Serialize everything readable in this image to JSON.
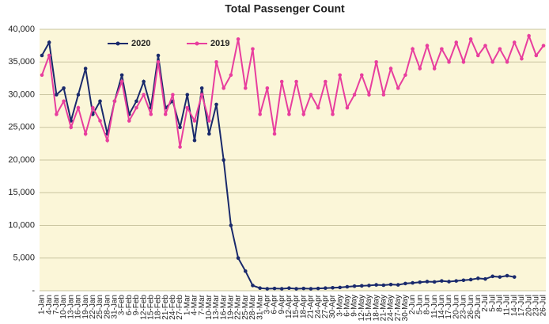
{
  "chart_data": {
    "type": "line",
    "title": "Total Passenger Count",
    "categories": [
      "1-Jan",
      "4-Jan",
      "7-Jan",
      "10-Jan",
      "13-Jan",
      "16-Jan",
      "19-Jan",
      "22-Jan",
      "25-Jan",
      "28-Jan",
      "31-Jan",
      "3-Feb",
      "6-Feb",
      "9-Feb",
      "12-Feb",
      "15-Feb",
      "18-Feb",
      "21-Feb",
      "24-Feb",
      "27-Feb",
      "1-Mar",
      "4-Mar",
      "7-Mar",
      "10-Mar",
      "13-Mar",
      "16-Mar",
      "19-Mar",
      "22-Mar",
      "25-Mar",
      "28-Mar",
      "31-Mar",
      "3-Apr",
      "6-Apr",
      "9-Apr",
      "12-Apr",
      "15-Apr",
      "18-Apr",
      "21-Apr",
      "24-Apr",
      "27-Apr",
      "30-Apr",
      "3-May",
      "6-May",
      "9-May",
      "12-May",
      "15-May",
      "18-May",
      "21-May",
      "24-May",
      "27-May",
      "30-May",
      "2-Jun",
      "5-Jun",
      "8-Jun",
      "11-Jun",
      "14-Jun",
      "17-Jun",
      "20-Jun",
      "23-Jun",
      "26-Jun",
      "29-Jun",
      "2-Jul",
      "5-Jul",
      "8-Jul",
      "11-Jul",
      "14-Jul",
      "17-Jul",
      "20-Jul",
      "23-Jul",
      "26-Jul"
    ],
    "series": [
      {
        "name": "2020",
        "color": "#1a2a6c",
        "values": [
          36000,
          38000,
          30000,
          31000,
          26000,
          30000,
          34000,
          27000,
          29000,
          24000,
          29000,
          33000,
          27000,
          29000,
          32000,
          28000,
          36000,
          28000,
          29000,
          25000,
          30000,
          23000,
          31000,
          24000,
          28500,
          20000,
          10000,
          5000,
          3000,
          800,
          400,
          300,
          350,
          300,
          400,
          300,
          350,
          300,
          350,
          400,
          450,
          500,
          600,
          700,
          750,
          800,
          900,
          850,
          950,
          900,
          1100,
          1200,
          1300,
          1400,
          1350,
          1500,
          1400,
          1500,
          1600,
          1700,
          1900,
          1800,
          2200,
          2100,
          2300,
          2100,
          null,
          null,
          null,
          null
        ]
      },
      {
        "name": "2019",
        "color": "#e83e9e",
        "values": [
          33000,
          36000,
          27000,
          29000,
          25000,
          28000,
          24000,
          28000,
          26000,
          23000,
          29000,
          32000,
          26000,
          28000,
          30000,
          27000,
          35000,
          27000,
          30000,
          22000,
          28000,
          26000,
          30000,
          26000,
          35000,
          31000,
          33000,
          38500,
          31000,
          37000,
          27000,
          31000,
          24000,
          32000,
          27000,
          32000,
          27000,
          30000,
          28000,
          32000,
          27000,
          33000,
          28000,
          30000,
          33000,
          30000,
          35000,
          30000,
          34000,
          31000,
          33000,
          37000,
          34000,
          37500,
          34000,
          37000,
          35000,
          38000,
          35000,
          38500,
          36000,
          37500,
          35000,
          37000,
          35000,
          38000,
          35500,
          39000,
          36000,
          37500
        ]
      }
    ],
    "ylim": [
      0,
      40000
    ],
    "yticks": [
      {
        "value": 0,
        "label": "-"
      },
      {
        "value": 5000,
        "label": "5,000"
      },
      {
        "value": 10000,
        "label": "10,000"
      },
      {
        "value": 15000,
        "label": "15,000"
      },
      {
        "value": 20000,
        "label": "20,000"
      },
      {
        "value": 25000,
        "label": "25,000"
      },
      {
        "value": 30000,
        "label": "30,000"
      },
      {
        "value": 35000,
        "label": "35,000"
      },
      {
        "value": 40000,
        "label": "40,000"
      }
    ],
    "grid": true
  }
}
